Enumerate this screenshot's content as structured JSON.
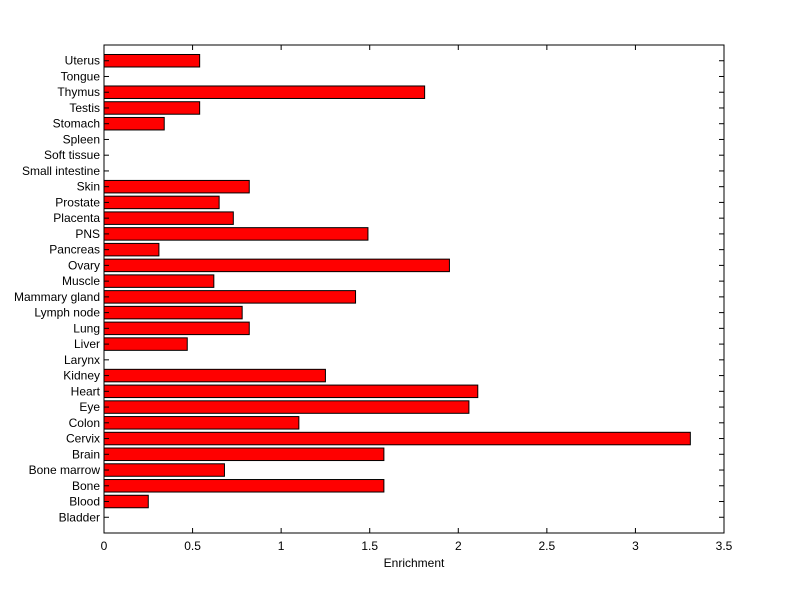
{
  "chart_data": {
    "type": "bar",
    "orientation": "horizontal",
    "title": "",
    "xlabel": "Enrichment",
    "ylabel": "",
    "xlim": [
      0,
      3.5
    ],
    "xticks": [
      0,
      0.5,
      1,
      1.5,
      2,
      2.5,
      3,
      3.5
    ],
    "grid": false,
    "bar_color": "#ff0000",
    "bar_edge_color": "#000000",
    "categories": [
      "Uterus",
      "Tongue",
      "Thymus",
      "Testis",
      "Stomach",
      "Spleen",
      "Soft tissue",
      "Small intestine",
      "Skin",
      "Prostate",
      "Placenta",
      "PNS",
      "Pancreas",
      "Ovary",
      "Muscle",
      "Mammary gland",
      "Lymph node",
      "Lung",
      "Liver",
      "Larynx",
      "Kidney",
      "Heart",
      "Eye",
      "Colon",
      "Cervix",
      "Brain",
      "Bone marrow",
      "Bone",
      "Blood",
      "Bladder"
    ],
    "values": [
      0.54,
      0,
      1.81,
      0.54,
      0.34,
      0,
      0,
      0,
      0.82,
      0.65,
      0.73,
      1.49,
      0.31,
      1.95,
      0.62,
      1.42,
      0.78,
      0.82,
      0.47,
      0,
      1.25,
      2.11,
      2.06,
      1.1,
      3.31,
      1.58,
      0.68,
      1.58,
      0.25,
      0
    ]
  }
}
